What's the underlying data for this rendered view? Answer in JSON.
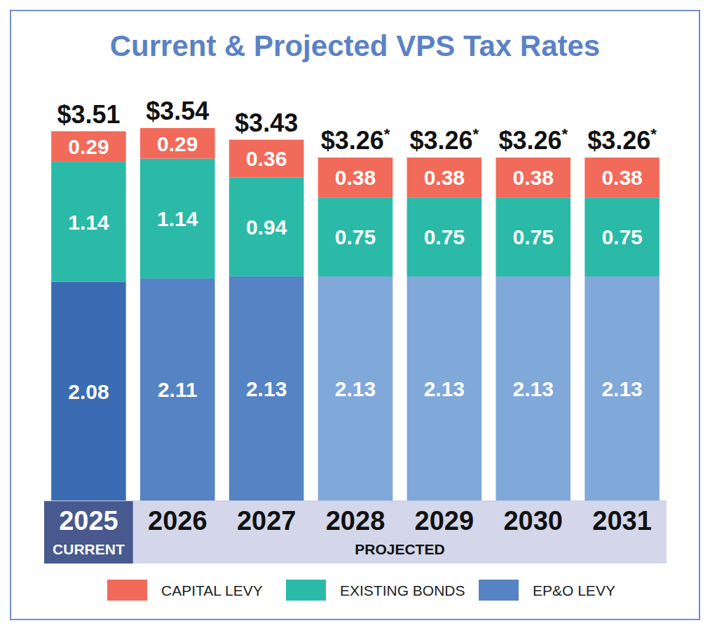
{
  "chart_data": {
    "type": "bar",
    "title": "Current & Projected VPS Tax Rates",
    "categories": [
      "2025",
      "2026",
      "2027",
      "2028",
      "2029",
      "2030",
      "2031"
    ],
    "series": [
      {
        "name": "EP&O LEVY",
        "color": "#5683c3",
        "colors": [
          "#3a6bb3",
          "#5683c3",
          "#5683c3",
          "#80a8d9",
          "#80a8d9",
          "#80a8d9",
          "#80a8d9"
        ],
        "values": [
          2.08,
          2.11,
          2.13,
          2.13,
          2.13,
          2.13,
          2.13
        ]
      },
      {
        "name": "EXISTING BONDS",
        "color": "#2bbaa8",
        "values": [
          1.14,
          1.14,
          0.94,
          0.75,
          0.75,
          0.75,
          0.75
        ]
      },
      {
        "name": "CAPITAL LEVY",
        "color": "#f26a5a",
        "values": [
          0.29,
          0.29,
          0.36,
          0.38,
          0.38,
          0.38,
          0.38
        ]
      }
    ],
    "totals": [
      3.51,
      3.54,
      3.43,
      3.26,
      3.26,
      3.26,
      3.26
    ],
    "total_labels": [
      "$3.51",
      "$3.54",
      "$3.43",
      "$3.26*",
      "$3.26*",
      "$3.26*",
      "$3.26*"
    ],
    "groups": [
      {
        "label": "CURRENT",
        "categories": [
          "2025"
        ]
      },
      {
        "label": "PROJECTED",
        "categories": [
          "2026",
          "2027",
          "2028",
          "2029",
          "2030",
          "2031"
        ]
      }
    ],
    "stacked": true,
    "data_labels": true,
    "tick_labels": "x",
    "legend": "bottom",
    "ylim": [
      0,
      3.54
    ]
  }
}
